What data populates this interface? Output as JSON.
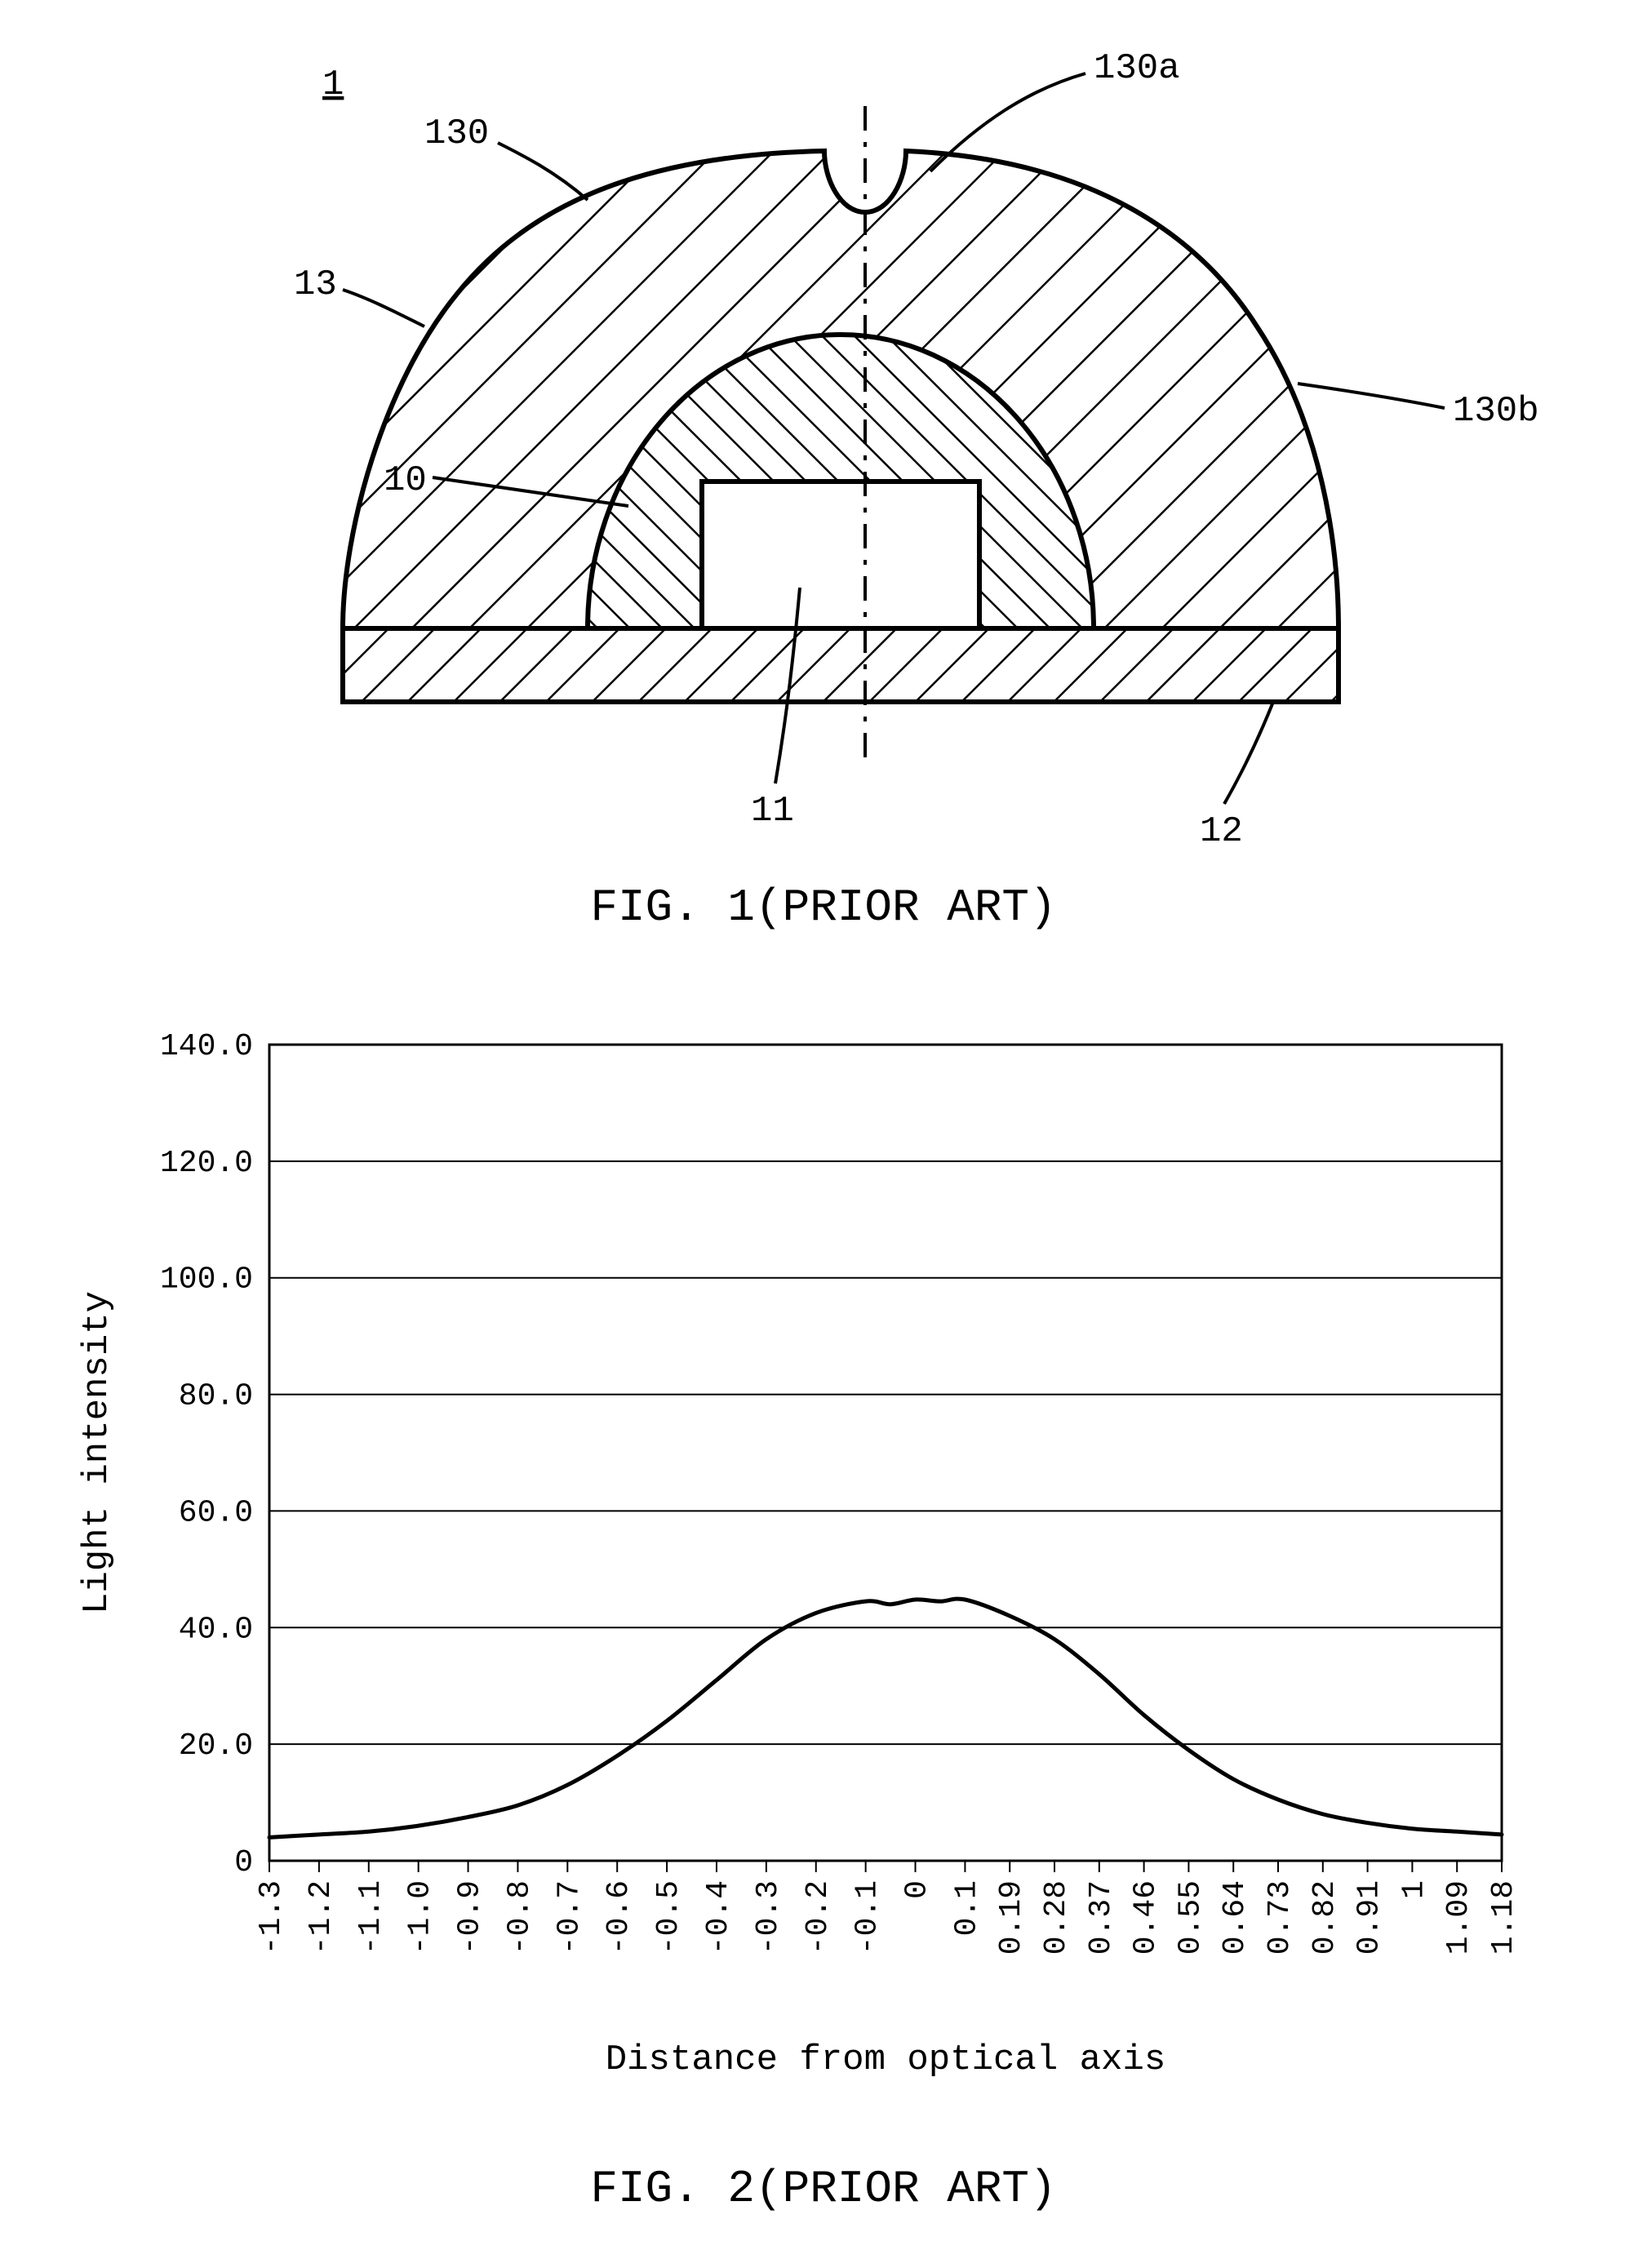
{
  "figure1": {
    "title": "FIG. 1(PRIOR ART)",
    "title_fontsize": 56,
    "ref_1": "1",
    "labels": {
      "a": "130a",
      "b": "130b",
      "l130": "130",
      "l13": "13",
      "l10": "10",
      "l11": "11",
      "l12": "12"
    },
    "label_fontsize": 44,
    "line_color": "#000000",
    "background": "#ffffff"
  },
  "figure2": {
    "title": "FIG. 2(PRIOR ART)",
    "title_fontsize": 56,
    "xlabel": "Distance from optical axis",
    "ylabel": "Light intensity",
    "axis_label_fontsize": 44,
    "tick_fontsize": 38,
    "ylim": [
      0,
      140
    ],
    "ytick_step": 20,
    "yticks": [
      "0",
      "20.0",
      "40.0",
      "60.0",
      "80.0",
      "100.0",
      "120.0",
      "140.0"
    ],
    "xticks": [
      "-1.3",
      "-1.2",
      "-1.1",
      "-1.0",
      "-0.9",
      "-0.8",
      "-0.7",
      "-0.6",
      "-0.5",
      "-0.4",
      "-0.3",
      "-0.2",
      "-0.1",
      "0",
      "0.1",
      "0.19",
      "0.28",
      "0.37",
      "0.46",
      "0.55",
      "0.64",
      "0.73",
      "0.82",
      "0.91",
      "1",
      "1.09",
      "1.18"
    ],
    "curve_data": [
      [
        -1.3,
        4
      ],
      [
        -1.2,
        4.5
      ],
      [
        -1.1,
        5
      ],
      [
        -1.0,
        6
      ],
      [
        -0.9,
        7.5
      ],
      [
        -0.8,
        9.5
      ],
      [
        -0.7,
        13
      ],
      [
        -0.6,
        18
      ],
      [
        -0.5,
        24
      ],
      [
        -0.4,
        31
      ],
      [
        -0.3,
        38
      ],
      [
        -0.2,
        42.5
      ],
      [
        -0.1,
        44.5
      ],
      [
        -0.05,
        44
      ],
      [
        0,
        44.8
      ],
      [
        0.05,
        44.5
      ],
      [
        0.1,
        44.8
      ],
      [
        0.19,
        42
      ],
      [
        0.28,
        38
      ],
      [
        0.37,
        32
      ],
      [
        0.46,
        25
      ],
      [
        0.55,
        19
      ],
      [
        0.64,
        14
      ],
      [
        0.73,
        10.5
      ],
      [
        0.82,
        8
      ],
      [
        0.91,
        6.5
      ],
      [
        1.0,
        5.5
      ],
      [
        1.09,
        5
      ],
      [
        1.18,
        4.5
      ]
    ],
    "line_color": "#000000",
    "grid_color": "#000000",
    "background_color": "#ffffff",
    "line_width": 3,
    "grid_line_width": 2,
    "border_width": 3
  }
}
